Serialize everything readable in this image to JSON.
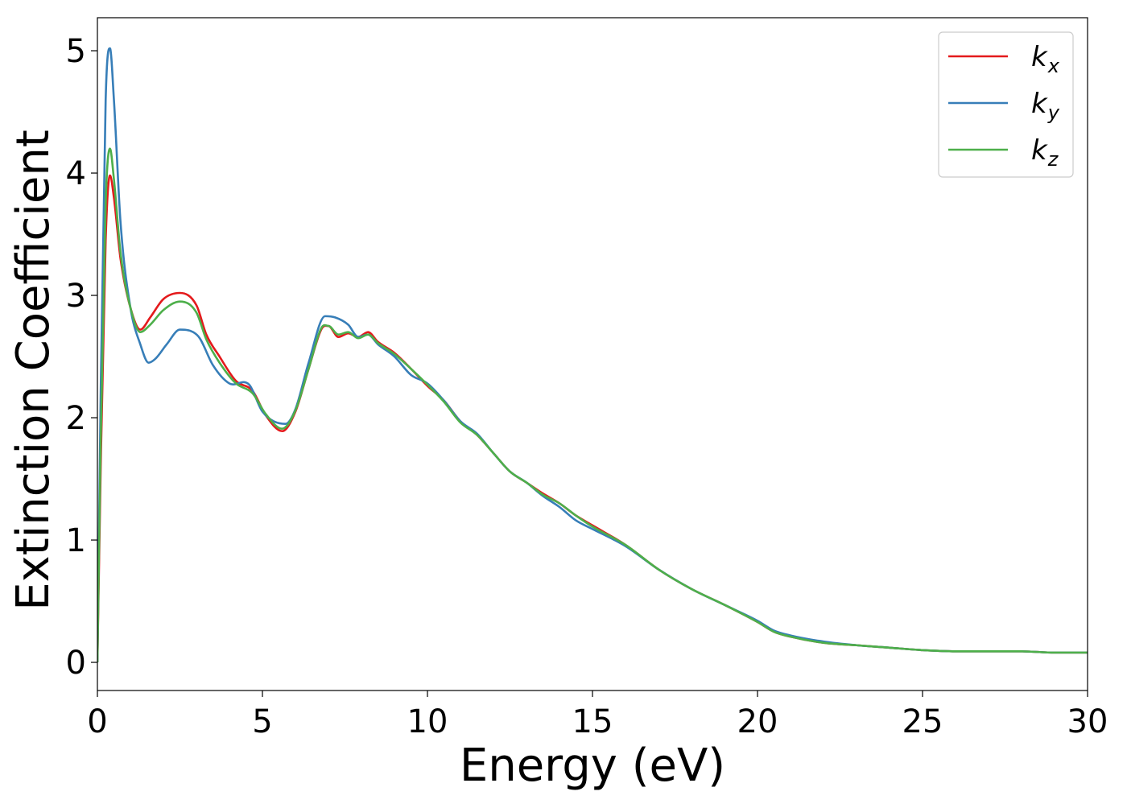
{
  "chart_data": {
    "type": "line",
    "xlabel": "Energy (eV)",
    "ylabel": "Extinction Coefficient",
    "xlim": [
      0,
      30
    ],
    "ylim": [
      -0.23,
      5.27
    ],
    "xticks": [
      0,
      5,
      10,
      15,
      20,
      25,
      30
    ],
    "yticks": [
      0,
      1,
      2,
      3,
      4,
      5
    ],
    "grid": false,
    "legend_position": "top-right",
    "series": [
      {
        "name": "k_x",
        "legend_base": "k",
        "legend_sub": "x",
        "color": "#e41a1c",
        "x": [
          0,
          0.1,
          0.25,
          0.38,
          0.5,
          0.7,
          1.0,
          1.3,
          1.6,
          2.0,
          2.5,
          3.0,
          3.3,
          3.7,
          4.2,
          4.7,
          5.1,
          5.6,
          6.0,
          6.4,
          6.8,
          7.0,
          7.3,
          7.6,
          7.9,
          8.2,
          8.5,
          9.0,
          9.5,
          10.0,
          10.5,
          11.0,
          11.5,
          12.0,
          12.5,
          13.0,
          13.5,
          14.0,
          14.5,
          15.0,
          16.0,
          17.0,
          18.0,
          19.0,
          20.0,
          20.5,
          21.0,
          22.0,
          23.0,
          24.0,
          25.0,
          26.0,
          27.0,
          28.0,
          29.0,
          30.0
        ],
        "y": [
          0.0,
          1.6,
          3.45,
          3.98,
          3.8,
          3.3,
          2.9,
          2.72,
          2.82,
          2.97,
          3.02,
          2.92,
          2.68,
          2.5,
          2.3,
          2.22,
          2.02,
          1.89,
          2.05,
          2.4,
          2.73,
          2.75,
          2.66,
          2.69,
          2.66,
          2.7,
          2.62,
          2.53,
          2.4,
          2.26,
          2.14,
          1.97,
          1.86,
          1.71,
          1.56,
          1.47,
          1.38,
          1.3,
          1.2,
          1.12,
          0.96,
          0.76,
          0.6,
          0.47,
          0.33,
          0.25,
          0.21,
          0.16,
          0.14,
          0.12,
          0.1,
          0.09,
          0.09,
          0.09,
          0.08,
          0.08
        ]
      },
      {
        "name": "k_y",
        "legend_base": "k",
        "legend_sub": "y",
        "color": "#377eb8",
        "x": [
          0,
          0.1,
          0.25,
          0.38,
          0.5,
          0.7,
          1.0,
          1.3,
          1.55,
          1.75,
          2.1,
          2.5,
          2.9,
          3.1,
          3.5,
          4.0,
          4.6,
          5.0,
          5.7,
          6.0,
          6.4,
          6.9,
          7.2,
          7.6,
          7.9,
          8.2,
          8.5,
          9.0,
          9.5,
          10.0,
          10.5,
          11.0,
          11.5,
          12.0,
          12.5,
          13.0,
          13.5,
          14.0,
          14.5,
          15.0,
          16.0,
          17.0,
          18.0,
          19.0,
          20.0,
          20.5,
          21.0,
          22.0,
          23.0,
          24.0,
          25.0,
          26.0,
          27.0,
          28.0,
          29.0,
          30.0
        ],
        "y": [
          0.0,
          2.2,
          4.6,
          5.02,
          4.6,
          3.6,
          2.9,
          2.6,
          2.45,
          2.48,
          2.6,
          2.72,
          2.7,
          2.65,
          2.43,
          2.28,
          2.27,
          2.05,
          1.95,
          2.07,
          2.45,
          2.83,
          2.82,
          2.76,
          2.66,
          2.68,
          2.6,
          2.5,
          2.35,
          2.28,
          2.14,
          1.97,
          1.87,
          1.71,
          1.56,
          1.47,
          1.36,
          1.27,
          1.16,
          1.09,
          0.95,
          0.76,
          0.6,
          0.47,
          0.34,
          0.26,
          0.22,
          0.17,
          0.14,
          0.12,
          0.1,
          0.09,
          0.09,
          0.09,
          0.08,
          0.08
        ]
      },
      {
        "name": "k_z",
        "legend_base": "k",
        "legend_sub": "z",
        "color": "#4daf4a",
        "x": [
          0,
          0.1,
          0.25,
          0.38,
          0.5,
          0.7,
          1.0,
          1.3,
          1.6,
          2.0,
          2.5,
          3.0,
          3.3,
          3.7,
          4.2,
          4.7,
          5.1,
          5.6,
          6.0,
          6.4,
          6.8,
          7.0,
          7.3,
          7.6,
          7.9,
          8.2,
          8.5,
          9.0,
          9.5,
          10.0,
          10.5,
          11.0,
          11.5,
          12.0,
          12.5,
          13.0,
          13.5,
          14.0,
          14.5,
          15.0,
          16.0,
          17.0,
          18.0,
          19.0,
          20.0,
          20.5,
          21.0,
          22.0,
          23.0,
          24.0,
          25.0,
          26.0,
          27.0,
          28.0,
          29.0,
          30.0
        ],
        "y": [
          0.0,
          1.8,
          3.75,
          4.2,
          3.95,
          3.35,
          2.9,
          2.7,
          2.76,
          2.88,
          2.95,
          2.86,
          2.64,
          2.45,
          2.28,
          2.2,
          2.03,
          1.91,
          2.06,
          2.4,
          2.74,
          2.75,
          2.68,
          2.7,
          2.65,
          2.68,
          2.61,
          2.52,
          2.4,
          2.27,
          2.13,
          1.96,
          1.86,
          1.71,
          1.56,
          1.47,
          1.37,
          1.3,
          1.2,
          1.11,
          0.96,
          0.76,
          0.6,
          0.47,
          0.33,
          0.25,
          0.21,
          0.16,
          0.14,
          0.12,
          0.1,
          0.09,
          0.09,
          0.09,
          0.08,
          0.08
        ]
      }
    ]
  }
}
